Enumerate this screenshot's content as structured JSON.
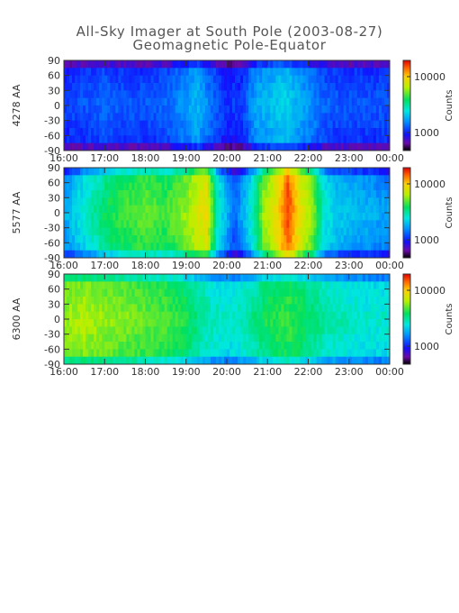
{
  "title": {
    "line1": "All-Sky Imager at South Pole (2003-08-27)",
    "line2": "Geomagnetic Pole-Equator"
  },
  "chart_data": [
    {
      "type": "heatmap",
      "ylabel": "4278 AA",
      "x_ticks": [
        "16:00",
        "17:00",
        "18:00",
        "19:00",
        "20:00",
        "21:00",
        "22:00",
        "23:00",
        "00:00"
      ],
      "y_ticks": [
        90,
        60,
        30,
        0,
        -30,
        -60,
        -90
      ],
      "ylim": [
        -90,
        90
      ],
      "colorbar": {
        "label": "Counts",
        "ticks": [
          "10000",
          "1000"
        ],
        "scale": "log"
      },
      "intensity_profile": {
        "hours": [
          16.0,
          16.5,
          17.0,
          17.5,
          18.0,
          18.5,
          19.0,
          19.3,
          19.6,
          20.0,
          20.4,
          20.7,
          21.0,
          21.4,
          21.7,
          22.0,
          22.4,
          22.8,
          23.2,
          23.6,
          24.0
        ],
        "level": [
          0.18,
          0.2,
          0.22,
          0.2,
          0.2,
          0.22,
          0.28,
          0.32,
          0.24,
          0.16,
          0.18,
          0.3,
          0.32,
          0.36,
          0.32,
          0.28,
          0.22,
          0.2,
          0.2,
          0.2,
          0.2
        ]
      }
    },
    {
      "type": "heatmap",
      "ylabel": "5577 AA",
      "x_ticks": [
        "16:00",
        "17:00",
        "18:00",
        "19:00",
        "20:00",
        "21:00",
        "22:00",
        "23:00",
        "00:00"
      ],
      "y_ticks": [
        90,
        60,
        30,
        0,
        -30,
        -60,
        -90
      ],
      "ylim": [
        -90,
        90
      ],
      "colorbar": {
        "label": "Counts",
        "ticks": [
          "10000",
          "1000"
        ],
        "scale": "log"
      },
      "intensity_profile": {
        "hours": [
          16.0,
          16.5,
          17.0,
          17.5,
          18.0,
          18.5,
          19.0,
          19.3,
          19.5,
          19.8,
          20.2,
          20.6,
          20.9,
          21.2,
          21.5,
          21.8,
          22.1,
          22.4,
          22.7,
          23.2,
          23.6,
          24.0
        ],
        "level": [
          0.3,
          0.4,
          0.5,
          0.55,
          0.58,
          0.55,
          0.62,
          0.7,
          0.72,
          0.4,
          0.22,
          0.4,
          0.62,
          0.72,
          0.9,
          0.72,
          0.62,
          0.4,
          0.35,
          0.32,
          0.3,
          0.28
        ]
      }
    },
    {
      "type": "heatmap",
      "ylabel": "6300 AA",
      "x_ticks": [
        "16:00",
        "17:00",
        "18:00",
        "19:00",
        "20:00",
        "21:00",
        "22:00",
        "23:00",
        "00:00"
      ],
      "y_ticks": [
        90,
        60,
        30,
        0,
        -30,
        -60,
        -90
      ],
      "ylim": [
        -90,
        90
      ],
      "colorbar": {
        "label": "Counts",
        "ticks": [
          "10000",
          "1000"
        ],
        "scale": "log"
      },
      "intensity_profile": {
        "hours": [
          16.0,
          16.5,
          17.0,
          17.5,
          18.0,
          18.5,
          19.0,
          19.5,
          20.0,
          20.5,
          21.0,
          21.5,
          22.0,
          22.5,
          23.0,
          23.5,
          24.0
        ],
        "level": [
          0.62,
          0.64,
          0.62,
          0.6,
          0.58,
          0.56,
          0.52,
          0.44,
          0.4,
          0.44,
          0.52,
          0.55,
          0.5,
          0.44,
          0.42,
          0.4,
          0.4
        ]
      }
    }
  ],
  "colors": {
    "axis": "#333333",
    "text": "#555555"
  }
}
